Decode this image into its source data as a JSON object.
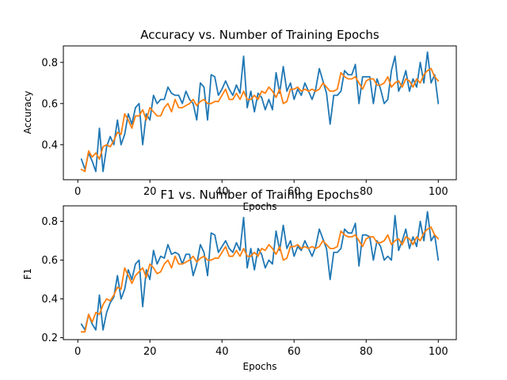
{
  "chart_data": [
    {
      "type": "line",
      "title": "Accuracy vs. Number of Training Epochs",
      "xlabel": "Epochs",
      "ylabel": "Accuracy",
      "xlim": [
        -4,
        105
      ],
      "ylim": [
        0.23,
        0.88
      ],
      "xticks": [
        0,
        20,
        40,
        60,
        80,
        100
      ],
      "yticks": [
        0.4,
        0.6,
        0.8
      ],
      "grid": false,
      "legend": "none",
      "colors": [
        "#1f77b4",
        "#ff7f0e"
      ],
      "x_start": 1,
      "series": [
        {
          "values": [
            0.33,
            0.28,
            0.36,
            0.32,
            0.27,
            0.48,
            0.27,
            0.39,
            0.44,
            0.4,
            0.52,
            0.4,
            0.45,
            0.55,
            0.5,
            0.58,
            0.6,
            0.4,
            0.55,
            0.52,
            0.64,
            0.6,
            0.62,
            0.62,
            0.68,
            0.65,
            0.64,
            0.64,
            0.6,
            0.66,
            0.62,
            0.6,
            0.52,
            0.7,
            0.68,
            0.52,
            0.74,
            0.73,
            0.64,
            0.67,
            0.71,
            0.67,
            0.64,
            0.69,
            0.65,
            0.83,
            0.58,
            0.66,
            0.56,
            0.65,
            0.63,
            0.57,
            0.62,
            0.57,
            0.75,
            0.65,
            0.78,
            0.66,
            0.7,
            0.62,
            0.67,
            0.64,
            0.7,
            0.66,
            0.62,
            0.67,
            0.77,
            0.71,
            0.65,
            0.5,
            0.64,
            0.64,
            0.66,
            0.76,
            0.74,
            0.74,
            0.79,
            0.6,
            0.73,
            0.73,
            0.73,
            0.6,
            0.72,
            0.67,
            0.6,
            0.62,
            0.76,
            0.83,
            0.66,
            0.7,
            0.76,
            0.66,
            0.72,
            0.68,
            0.8,
            0.7,
            0.85,
            0.7,
            0.74,
            0.6
          ]
        },
        {
          "values": [
            0.28,
            0.27,
            0.37,
            0.34,
            0.36,
            0.33,
            0.39,
            0.4,
            0.39,
            0.42,
            0.46,
            0.45,
            0.55,
            0.52,
            0.48,
            0.54,
            0.54,
            0.57,
            0.52,
            0.58,
            0.56,
            0.54,
            0.54,
            0.58,
            0.6,
            0.56,
            0.62,
            0.58,
            0.58,
            0.59,
            0.6,
            0.62,
            0.59,
            0.61,
            0.62,
            0.6,
            0.6,
            0.61,
            0.61,
            0.64,
            0.67,
            0.62,
            0.62,
            0.65,
            0.62,
            0.66,
            0.62,
            0.62,
            0.64,
            0.62,
            0.66,
            0.65,
            0.68,
            0.66,
            0.63,
            0.67,
            0.6,
            0.61,
            0.67,
            0.67,
            0.68,
            0.66,
            0.67,
            0.66,
            0.67,
            0.66,
            0.67,
            0.7,
            0.68,
            0.66,
            0.66,
            0.67,
            0.75,
            0.73,
            0.72,
            0.72,
            0.73,
            0.7,
            0.67,
            0.71,
            0.72,
            0.72,
            0.69,
            0.69,
            0.7,
            0.73,
            0.68,
            0.7,
            0.71,
            0.68,
            0.72,
            0.71,
            0.68,
            0.72,
            0.7,
            0.74,
            0.76,
            0.77,
            0.73,
            0.71
          ]
        }
      ]
    },
    {
      "type": "line",
      "title": "F1 vs. Number of Training Epochs",
      "xlabel": "Epochs",
      "ylabel": "F1",
      "xlim": [
        -4,
        105
      ],
      "ylim": [
        0.19,
        0.88
      ],
      "xticks": [
        0,
        20,
        40,
        60,
        80,
        100
      ],
      "yticks": [
        0.2,
        0.4,
        0.6,
        0.8
      ],
      "grid": false,
      "legend": "none",
      "colors": [
        "#1f77b4",
        "#ff7f0e"
      ],
      "x_start": 1,
      "series": [
        {
          "values": [
            0.27,
            0.24,
            0.32,
            0.27,
            0.24,
            0.42,
            0.24,
            0.33,
            0.38,
            0.41,
            0.52,
            0.4,
            0.45,
            0.55,
            0.5,
            0.58,
            0.6,
            0.36,
            0.55,
            0.5,
            0.65,
            0.58,
            0.62,
            0.61,
            0.68,
            0.63,
            0.64,
            0.63,
            0.58,
            0.63,
            0.63,
            0.52,
            0.58,
            0.68,
            0.64,
            0.52,
            0.74,
            0.73,
            0.64,
            0.67,
            0.7,
            0.66,
            0.64,
            0.69,
            0.65,
            0.82,
            0.56,
            0.66,
            0.55,
            0.66,
            0.63,
            0.56,
            0.6,
            0.58,
            0.75,
            0.65,
            0.78,
            0.66,
            0.7,
            0.62,
            0.67,
            0.65,
            0.7,
            0.66,
            0.62,
            0.67,
            0.76,
            0.71,
            0.66,
            0.5,
            0.64,
            0.64,
            0.66,
            0.76,
            0.74,
            0.74,
            0.79,
            0.57,
            0.73,
            0.73,
            0.72,
            0.6,
            0.7,
            0.67,
            0.6,
            0.62,
            0.6,
            0.83,
            0.65,
            0.7,
            0.76,
            0.66,
            0.72,
            0.67,
            0.8,
            0.7,
            0.85,
            0.7,
            0.73,
            0.6
          ]
        },
        {
          "values": [
            0.23,
            0.23,
            0.32,
            0.28,
            0.33,
            0.32,
            0.37,
            0.4,
            0.39,
            0.42,
            0.46,
            0.45,
            0.56,
            0.52,
            0.48,
            0.52,
            0.54,
            0.56,
            0.51,
            0.58,
            0.56,
            0.53,
            0.54,
            0.58,
            0.6,
            0.56,
            0.62,
            0.58,
            0.58,
            0.59,
            0.6,
            0.62,
            0.59,
            0.61,
            0.62,
            0.6,
            0.6,
            0.61,
            0.61,
            0.64,
            0.67,
            0.62,
            0.62,
            0.65,
            0.62,
            0.66,
            0.62,
            0.62,
            0.64,
            0.62,
            0.66,
            0.65,
            0.68,
            0.66,
            0.63,
            0.67,
            0.6,
            0.61,
            0.67,
            0.67,
            0.68,
            0.66,
            0.67,
            0.66,
            0.67,
            0.66,
            0.67,
            0.7,
            0.68,
            0.66,
            0.66,
            0.67,
            0.75,
            0.73,
            0.72,
            0.72,
            0.73,
            0.7,
            0.67,
            0.71,
            0.72,
            0.72,
            0.69,
            0.69,
            0.7,
            0.73,
            0.68,
            0.7,
            0.71,
            0.68,
            0.72,
            0.71,
            0.68,
            0.72,
            0.7,
            0.74,
            0.76,
            0.77,
            0.73,
            0.71
          ]
        }
      ]
    }
  ]
}
